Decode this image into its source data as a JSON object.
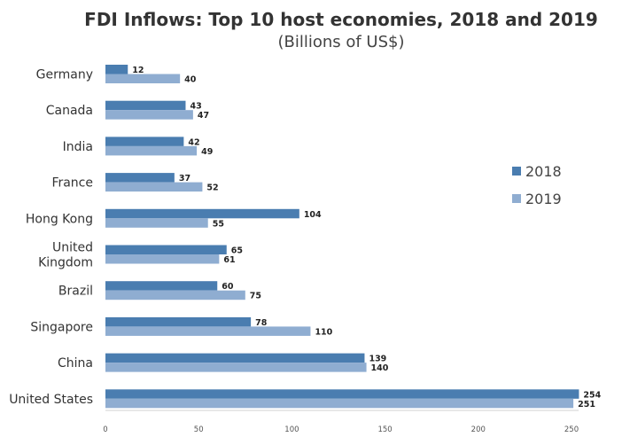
{
  "chart_data": {
    "type": "bar",
    "orientation": "horizontal",
    "title": "FDI Inflows: Top 10 host economies, 2018 and 2019",
    "subtitle": "(Billions of US$)",
    "categories": [
      [
        "Germany"
      ],
      [
        "Canada"
      ],
      [
        "India"
      ],
      [
        "France"
      ],
      [
        "Hong Kong"
      ],
      [
        "United",
        "Kingdom"
      ],
      [
        "Brazil"
      ],
      [
        "Singapore"
      ],
      [
        "China"
      ],
      [
        "United States"
      ]
    ],
    "series": [
      {
        "name": "2018",
        "color": "#4a7db0",
        "values": [
          12,
          43,
          42,
          37,
          104,
          65,
          60,
          78,
          139,
          254
        ]
      },
      {
        "name": "2019",
        "color": "#8fadd1",
        "values": [
          40,
          47,
          49,
          52,
          55,
          61,
          75,
          110,
          140,
          251
        ]
      }
    ],
    "xlim": [
      0,
      250
    ],
    "xticks": [
      "0",
      "50",
      "100",
      "150",
      "200",
      "250"
    ],
    "grid": false,
    "legend_position": "right"
  }
}
